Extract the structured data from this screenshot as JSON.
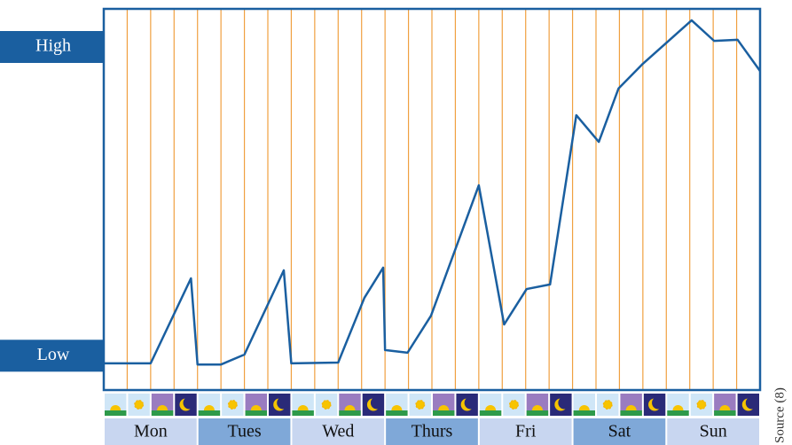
{
  "chart_data": {
    "type": "line",
    "categories": [
      "Mon",
      "Tues",
      "Wed",
      "Thurs",
      "Fri",
      "Sat",
      "Sun"
    ],
    "x": [
      0,
      0.5,
      0.93,
      1.0,
      1.25,
      1.5,
      1.92,
      2.0,
      2.5,
      2.78,
      2.98,
      3.0,
      3.24,
      3.49,
      4.0,
      4.27,
      4.51,
      4.76,
      5.04,
      5.28,
      5.49,
      5.75,
      6.27,
      6.51,
      6.76,
      7.0
    ],
    "series": [
      {
        "color": "#1a5fa0",
        "values": [
          7,
          7,
          29.3,
          6.7,
          6.7,
          9.3,
          31.4,
          7,
          7.2,
          24.2,
          32.1,
          10.5,
          9.8,
          19.5,
          53.7,
          17.2,
          26.5,
          27.7,
          72.1,
          65.1,
          79.1,
          85.6,
          97,
          91.6,
          91.9,
          83.7
        ]
      }
    ],
    "xlim": [
      0,
      7
    ],
    "ylim": [
      0,
      100
    ],
    "yticks": [
      {
        "value": 90,
        "label": "High"
      },
      {
        "value": 9,
        "label": "Low"
      }
    ],
    "grid_color": "#f0a040",
    "source": "Source (8)"
  }
}
